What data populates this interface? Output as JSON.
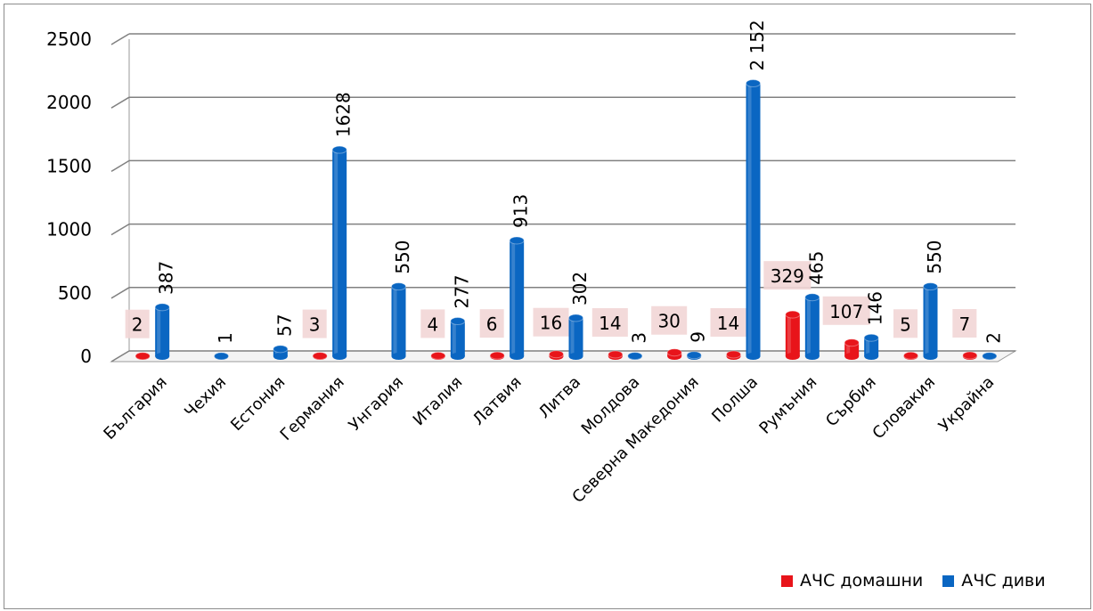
{
  "colors": {
    "domestic": "#e8141a",
    "wild": "#0a66c2",
    "label_box": "#f2d6d6"
  },
  "chart_data": {
    "type": "bar",
    "categories": [
      "България",
      "Чехия",
      "Естония",
      "Германия",
      "Унгария",
      "Италия",
      "Латвия",
      "Литва",
      "Молдова",
      "Северна Македония",
      "Полша",
      "Румъния",
      "Сърбия",
      "Словакия",
      "Украйна"
    ],
    "series": [
      {
        "name": "АЧС домашни",
        "values": [
          2,
          null,
          null,
          3,
          null,
          4,
          6,
          16,
          14,
          30,
          14,
          329,
          107,
          5,
          7
        ],
        "labels": [
          "2",
          "",
          "",
          "3",
          "",
          "4",
          "6",
          "16",
          "14",
          "30",
          "14",
          "329",
          "107",
          "5",
          "7"
        ]
      },
      {
        "name": "АЧС диви",
        "values": [
          387,
          1,
          57,
          1628,
          550,
          277,
          913,
          302,
          3,
          9,
          2152,
          465,
          146,
          550,
          2
        ],
        "labels": [
          "387",
          "1",
          "57",
          "1628",
          "550",
          "277",
          "913",
          "302",
          "3",
          "9",
          "2 152",
          "465",
          "146",
          "550",
          "2"
        ]
      }
    ],
    "yticks": [
      "0",
      "500",
      "1000",
      "1500",
      "2000",
      "2500"
    ],
    "ylim": [
      0,
      2500
    ],
    "grid": true,
    "legend": "bottom-right"
  }
}
